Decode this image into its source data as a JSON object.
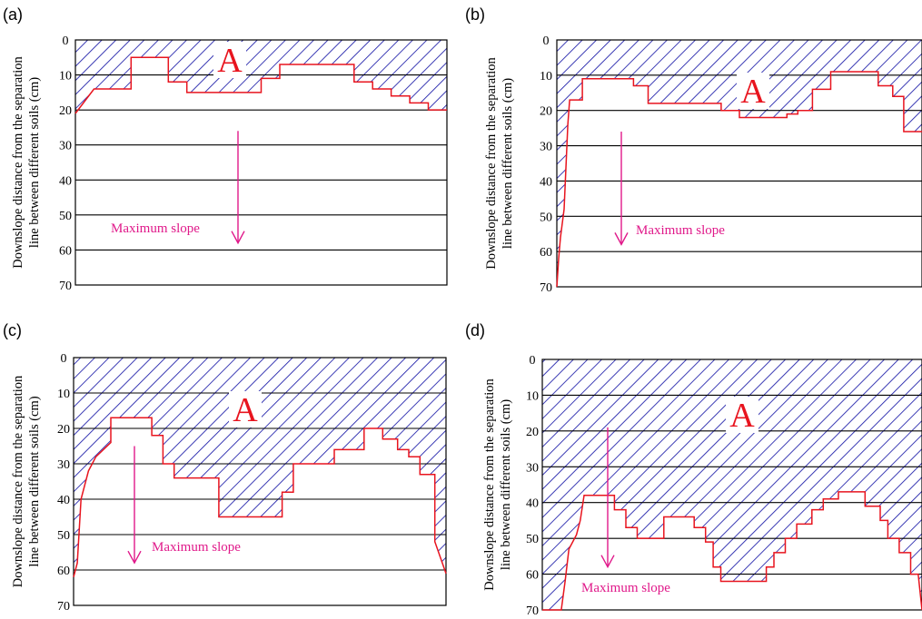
{
  "y_axis_title_line1": "Downslope distance from the separation",
  "y_axis_title_line2": "line between different soils (cm)",
  "y_ticks": [
    0,
    10,
    20,
    30,
    40,
    50,
    60,
    70
  ],
  "region_label": "A",
  "arrow_label": "Maximum slope",
  "colors": {
    "hatch": "#1a1aa8",
    "boundary": "#e8141e",
    "arrow": "#e0198a",
    "grid": "#000000"
  },
  "panels": [
    {
      "label": "(a)",
      "boundary_depth_cm": [
        [
          0,
          21
        ],
        [
          0.5,
          14
        ],
        [
          1.5,
          14
        ],
        [
          1.5,
          5
        ],
        [
          2.5,
          5
        ],
        [
          2.5,
          12
        ],
        [
          3,
          12
        ],
        [
          3,
          15
        ],
        [
          5,
          15
        ],
        [
          5,
          11
        ],
        [
          5.5,
          11
        ],
        [
          5.5,
          7
        ],
        [
          7.5,
          7
        ],
        [
          7.5,
          12
        ],
        [
          8,
          12
        ],
        [
          8,
          14
        ],
        [
          8.5,
          14
        ],
        [
          8.5,
          16
        ],
        [
          9,
          16
        ],
        [
          9,
          18
        ],
        [
          9.5,
          18
        ],
        [
          9.5,
          20
        ],
        [
          10,
          20
        ]
      ],
      "arrow_from_depth_cm": 26,
      "arrow_to_depth_cm": 58
    },
    {
      "label": "(b)",
      "boundary_depth_cm": [
        [
          0,
          70
        ],
        [
          0.05,
          62
        ],
        [
          0.1,
          56
        ],
        [
          0.2,
          48
        ],
        [
          0.3,
          24
        ],
        [
          0.35,
          17
        ],
        [
          0.7,
          17
        ],
        [
          0.7,
          11
        ],
        [
          2.1,
          11
        ],
        [
          2.1,
          13
        ],
        [
          2.5,
          13
        ],
        [
          2.5,
          18
        ],
        [
          4.5,
          18
        ],
        [
          4.5,
          20
        ],
        [
          5,
          20
        ],
        [
          5,
          22
        ],
        [
          6.3,
          22
        ],
        [
          6.3,
          21
        ],
        [
          6.6,
          21
        ],
        [
          6.6,
          20
        ],
        [
          7,
          20
        ],
        [
          7,
          14
        ],
        [
          7.5,
          14
        ],
        [
          7.5,
          9
        ],
        [
          8.8,
          9
        ],
        [
          8.8,
          13
        ],
        [
          9.2,
          13
        ],
        [
          9.2,
          16
        ],
        [
          9.5,
          16
        ],
        [
          9.5,
          26
        ],
        [
          10,
          26
        ]
      ],
      "arrow_from_depth_cm": 26,
      "arrow_to_depth_cm": 58
    },
    {
      "label": "(c)",
      "boundary_depth_cm": [
        [
          0,
          62
        ],
        [
          0.1,
          58
        ],
        [
          0.2,
          40
        ],
        [
          0.4,
          32
        ],
        [
          0.6,
          28
        ],
        [
          1,
          24
        ],
        [
          1,
          17
        ],
        [
          2.1,
          17
        ],
        [
          2.1,
          22
        ],
        [
          2.4,
          22
        ],
        [
          2.4,
          30
        ],
        [
          2.7,
          30
        ],
        [
          2.7,
          34
        ],
        [
          3.9,
          34
        ],
        [
          3.9,
          45
        ],
        [
          5.6,
          45
        ],
        [
          5.6,
          38
        ],
        [
          5.9,
          38
        ],
        [
          5.9,
          30
        ],
        [
          7,
          30
        ],
        [
          7,
          26
        ],
        [
          7.8,
          26
        ],
        [
          7.8,
          20
        ],
        [
          8.3,
          20
        ],
        [
          8.3,
          23
        ],
        [
          8.7,
          23
        ],
        [
          8.7,
          26
        ],
        [
          9,
          26
        ],
        [
          9,
          28
        ],
        [
          9.3,
          28
        ],
        [
          9.3,
          33
        ],
        [
          9.7,
          33
        ],
        [
          9.7,
          52
        ],
        [
          10,
          61
        ]
      ],
      "arrow_from_depth_cm": 25,
      "arrow_to_depth_cm": 58
    },
    {
      "label": "(d)",
      "boundary_depth_cm": [
        [
          0,
          70
        ],
        [
          0.5,
          70
        ],
        [
          0.6,
          62
        ],
        [
          0.7,
          53
        ],
        [
          0.9,
          49
        ],
        [
          1,
          45
        ],
        [
          1.1,
          38
        ],
        [
          1.9,
          38
        ],
        [
          1.9,
          42
        ],
        [
          2.2,
          42
        ],
        [
          2.2,
          47
        ],
        [
          2.5,
          47
        ],
        [
          2.5,
          50
        ],
        [
          3.2,
          50
        ],
        [
          3.2,
          44
        ],
        [
          4,
          44
        ],
        [
          4,
          47
        ],
        [
          4.3,
          47
        ],
        [
          4.3,
          51
        ],
        [
          4.5,
          51
        ],
        [
          4.5,
          58
        ],
        [
          4.7,
          58
        ],
        [
          4.7,
          62
        ],
        [
          5.9,
          62
        ],
        [
          5.9,
          58
        ],
        [
          6.1,
          58
        ],
        [
          6.1,
          54
        ],
        [
          6.4,
          54
        ],
        [
          6.4,
          50
        ],
        [
          6.7,
          50
        ],
        [
          6.7,
          46
        ],
        [
          7.1,
          46
        ],
        [
          7.1,
          42
        ],
        [
          7.4,
          42
        ],
        [
          7.4,
          39
        ],
        [
          7.8,
          39
        ],
        [
          7.8,
          37
        ],
        [
          8.5,
          37
        ],
        [
          8.5,
          41
        ],
        [
          8.9,
          41
        ],
        [
          8.9,
          45
        ],
        [
          9.1,
          45
        ],
        [
          9.1,
          50
        ],
        [
          9.4,
          50
        ],
        [
          9.4,
          54
        ],
        [
          9.7,
          54
        ],
        [
          9.7,
          60
        ],
        [
          9.9,
          60
        ],
        [
          10,
          70
        ]
      ],
      "arrow_from_depth_cm": 19,
      "arrow_to_depth_cm": 58
    }
  ]
}
